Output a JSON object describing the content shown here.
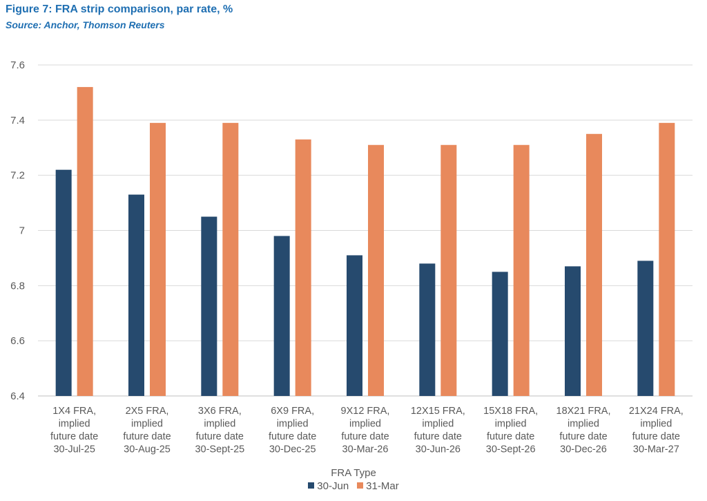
{
  "header": {
    "title": "Figure 7: FRA strip comparison, par rate, %",
    "subtitle": "Source: Anchor, Thomson Reuters"
  },
  "chart_data": {
    "type": "bar",
    "title": "Figure 7: FRA strip comparison, par rate, %",
    "xlabel": "FRA Type",
    "ylabel": "",
    "ylim": [
      6.4,
      7.6
    ],
    "yticks": [
      "7.6",
      "7.4",
      "7.2",
      "7",
      "6.8",
      "6.6",
      "6.4"
    ],
    "yticks_values": [
      7.6,
      7.4,
      7.2,
      7.0,
      6.8,
      6.6,
      6.4
    ],
    "grid": true,
    "legend_position": "bottom",
    "categories": [
      [
        "1X4 FRA,",
        "implied",
        "future date",
        "30-Jul-25"
      ],
      [
        "2X5 FRA,",
        "implied",
        "future date",
        "30-Aug-25"
      ],
      [
        "3X6 FRA,",
        "implied",
        "future date",
        "30-Sept-25"
      ],
      [
        "6X9 FRA,",
        "implied",
        "future date",
        "30-Dec-25"
      ],
      [
        "9X12 FRA,",
        "implied",
        "future date",
        "30-Mar-26"
      ],
      [
        "12X15 FRA,",
        "implied",
        "future date",
        "30-Jun-26"
      ],
      [
        "15X18 FRA,",
        "implied",
        "future date",
        "30-Sept-26"
      ],
      [
        "18X21 FRA,",
        "implied",
        "future date",
        "30-Dec-26"
      ],
      [
        "21X24 FRA,",
        "implied",
        "future date",
        "30-Mar-27"
      ]
    ],
    "series": [
      {
        "name": "30-Jun",
        "color": "#264a6e",
        "values": [
          7.22,
          7.13,
          7.05,
          6.98,
          6.91,
          6.88,
          6.85,
          6.87,
          6.89
        ]
      },
      {
        "name": "31-Mar",
        "color": "#e8895c",
        "values": [
          7.52,
          7.39,
          7.39,
          7.33,
          7.31,
          7.31,
          7.31,
          7.35,
          7.39
        ]
      }
    ]
  }
}
